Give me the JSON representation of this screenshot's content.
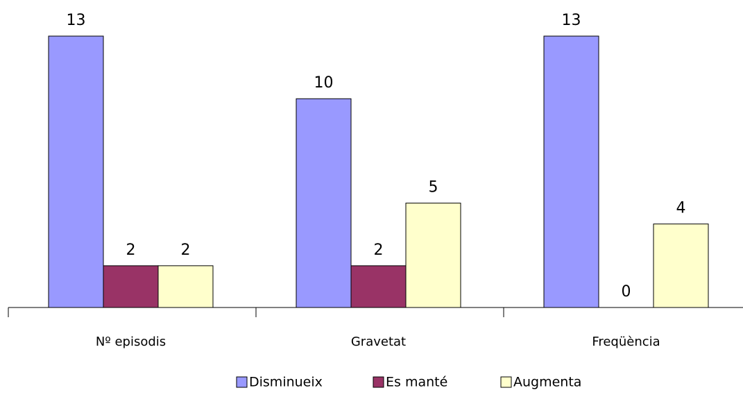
{
  "chart_data": {
    "type": "bar",
    "categories": [
      "Nº episodis",
      "Gravetat",
      "Freqüència"
    ],
    "series": [
      {
        "name": "Disminueix",
        "color": "#9999ff",
        "values": [
          13,
          10,
          13
        ]
      },
      {
        "name": "Es manté",
        "color": "#993366",
        "values": [
          2,
          2,
          0
        ]
      },
      {
        "name": "Augmenta",
        "color": "#ffffcc",
        "values": [
          2,
          5,
          4
        ]
      }
    ]
  }
}
